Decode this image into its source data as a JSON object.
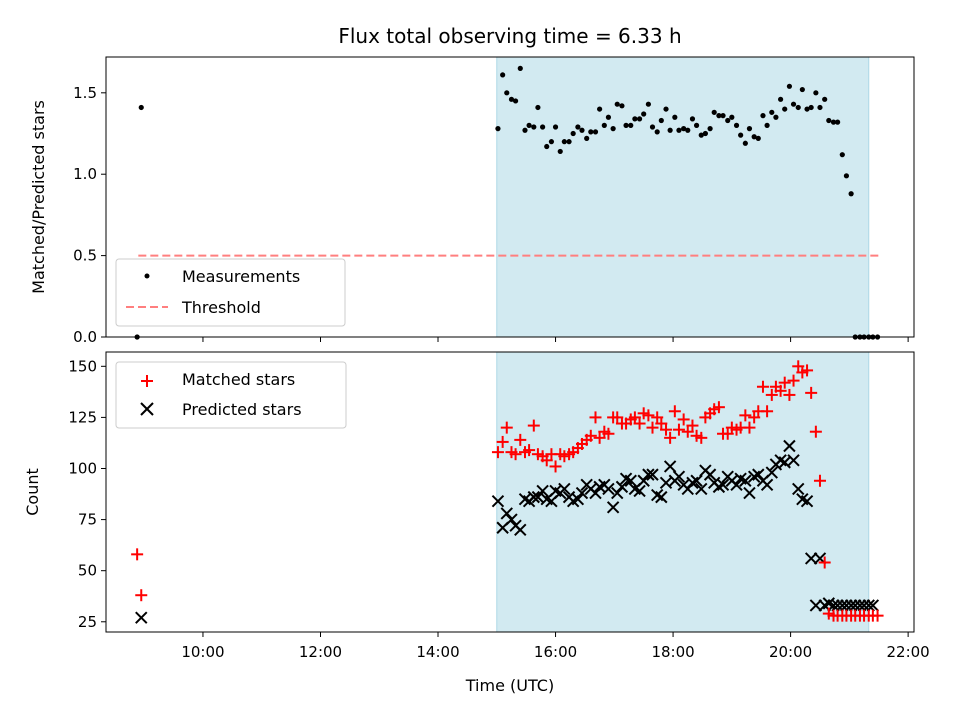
{
  "title": "Flux total observing time = 6.33 h",
  "colors": {
    "shade": "#add8e6",
    "measurement": "#000000",
    "threshold": "#ff7f7f",
    "matched": "#ff0000",
    "predicted": "#000000"
  },
  "chart_data": [
    {
      "type": "scatter",
      "panel": "top",
      "ylabel": "Matched/Predicted stars",
      "xlim": [
        8.35,
        22.1
      ],
      "ylim": [
        0,
        1.72
      ],
      "yticks": [
        0.0,
        0.5,
        1.0,
        1.5
      ],
      "ytick_labels": [
        "0.0",
        "0.5",
        "1.0",
        "1.5"
      ],
      "shaded_span": [
        15.0,
        21.33
      ],
      "legend": {
        "position": "lower-left",
        "entries": [
          "Measurements",
          "Threshold"
        ]
      },
      "threshold": {
        "name": "Threshold",
        "y": 0.5,
        "x_range": [
          8.9,
          21.5
        ]
      },
      "series": [
        {
          "name": "Measurements",
          "x": [
            8.88,
            8.95,
            15.02,
            15.1,
            15.17,
            15.25,
            15.32,
            15.4,
            15.48,
            15.55,
            15.63,
            15.7,
            15.78,
            15.85,
            15.93,
            16.0,
            16.08,
            16.15,
            16.23,
            16.3,
            16.38,
            16.45,
            16.53,
            16.6,
            16.68,
            16.75,
            16.83,
            16.9,
            16.98,
            17.05,
            17.13,
            17.2,
            17.28,
            17.35,
            17.43,
            17.5,
            17.58,
            17.65,
            17.73,
            17.8,
            17.88,
            17.95,
            18.03,
            18.1,
            18.18,
            18.25,
            18.33,
            18.4,
            18.48,
            18.55,
            18.63,
            18.7,
            18.78,
            18.85,
            18.93,
            19.0,
            19.08,
            19.15,
            19.23,
            19.3,
            19.38,
            19.45,
            19.53,
            19.6,
            19.68,
            19.75,
            19.83,
            19.9,
            19.98,
            20.05,
            20.13,
            20.2,
            20.28,
            20.35,
            20.43,
            20.5,
            20.58,
            20.65,
            20.73,
            20.8,
            20.88,
            20.95,
            21.03,
            21.1,
            21.18,
            21.25,
            21.33,
            21.4,
            21.48
          ],
          "y": [
            0.0,
            1.41,
            1.28,
            1.61,
            1.5,
            1.46,
            1.45,
            1.65,
            1.27,
            1.3,
            1.29,
            1.41,
            1.29,
            1.17,
            1.2,
            1.29,
            1.14,
            1.2,
            1.2,
            1.25,
            1.29,
            1.27,
            1.22,
            1.26,
            1.26,
            1.4,
            1.3,
            1.35,
            1.28,
            1.43,
            1.42,
            1.3,
            1.3,
            1.34,
            1.34,
            1.37,
            1.43,
            1.29,
            1.26,
            1.33,
            1.4,
            1.27,
            1.35,
            1.27,
            1.28,
            1.27,
            1.34,
            1.3,
            1.24,
            1.25,
            1.28,
            1.38,
            1.36,
            1.36,
            1.33,
            1.35,
            1.3,
            1.24,
            1.19,
            1.28,
            1.23,
            1.22,
            1.36,
            1.3,
            1.38,
            1.35,
            1.46,
            1.4,
            1.54,
            1.43,
            1.41,
            1.52,
            1.4,
            1.41,
            1.5,
            1.41,
            1.46,
            1.33,
            1.32,
            1.32,
            1.12,
            0.99,
            0.88,
            0.0,
            0.0,
            0.0,
            0.0,
            0.0,
            0.0
          ]
        }
      ]
    },
    {
      "type": "scatter",
      "panel": "bottom",
      "ylabel": "Count",
      "xlabel": "Time (UTC)",
      "xlim": [
        8.35,
        22.1
      ],
      "ylim": [
        20,
        157
      ],
      "yticks": [
        25,
        50,
        75,
        100,
        125,
        150
      ],
      "ytick_labels": [
        "25",
        "50",
        "75",
        "100",
        "125",
        "150"
      ],
      "xticks": [
        10,
        12,
        14,
        16,
        18,
        20,
        22
      ],
      "xtick_labels": [
        "10:00",
        "12:00",
        "14:00",
        "16:00",
        "18:00",
        "20:00",
        "22:00"
      ],
      "shaded_span": [
        15.0,
        21.33
      ],
      "legend": {
        "position": "upper-left",
        "entries": [
          "Matched stars",
          "Predicted stars"
        ]
      },
      "series": [
        {
          "name": "Matched stars",
          "marker": "plus",
          "x": [
            8.88,
            8.95,
            15.02,
            15.1,
            15.17,
            15.25,
            15.32,
            15.4,
            15.48,
            15.55,
            15.63,
            15.7,
            15.78,
            15.85,
            15.93,
            16.0,
            16.08,
            16.15,
            16.23,
            16.3,
            16.38,
            16.45,
            16.53,
            16.6,
            16.68,
            16.75,
            16.83,
            16.9,
            16.98,
            17.05,
            17.13,
            17.2,
            17.28,
            17.35,
            17.43,
            17.5,
            17.58,
            17.65,
            17.73,
            17.8,
            17.88,
            17.95,
            18.03,
            18.1,
            18.18,
            18.25,
            18.33,
            18.4,
            18.48,
            18.55,
            18.63,
            18.7,
            18.78,
            18.85,
            18.93,
            19.0,
            19.08,
            19.15,
            19.23,
            19.3,
            19.38,
            19.45,
            19.53,
            19.6,
            19.68,
            19.75,
            19.83,
            19.9,
            19.98,
            20.05,
            20.13,
            20.2,
            20.28,
            20.35,
            20.43,
            20.5,
            20.58,
            20.65,
            20.73,
            20.8,
            20.88,
            20.95,
            21.03,
            21.1,
            21.18,
            21.25,
            21.33,
            21.4,
            21.48
          ],
          "y": [
            58,
            38,
            108,
            113,
            120,
            108,
            107,
            114,
            108,
            109,
            121,
            107,
            106,
            104,
            107,
            101,
            107,
            106,
            107,
            108,
            110,
            112,
            114,
            116,
            125,
            115,
            118,
            117,
            125,
            125,
            122,
            122,
            124,
            125,
            122,
            127,
            126,
            120,
            125,
            122,
            119,
            115,
            128,
            119,
            124,
            118,
            121,
            116,
            115,
            125,
            127,
            129,
            130,
            117,
            117,
            120,
            119,
            120,
            126,
            120,
            125,
            128,
            140,
            128,
            136,
            140,
            138,
            142,
            136,
            143,
            150,
            147,
            148,
            137,
            118,
            94,
            54,
            29,
            28,
            28,
            28,
            28,
            28,
            28,
            28,
            28,
            28,
            28,
            28
          ],
          "y_note": ""
        },
        {
          "name": "Predicted stars",
          "marker": "x",
          "x": [
            8.95,
            15.02,
            15.1,
            15.17,
            15.25,
            15.32,
            15.4,
            15.48,
            15.55,
            15.63,
            15.7,
            15.78,
            15.85,
            15.93,
            16.0,
            16.08,
            16.15,
            16.23,
            16.3,
            16.38,
            16.45,
            16.53,
            16.6,
            16.68,
            16.75,
            16.83,
            16.9,
            16.98,
            17.05,
            17.13,
            17.2,
            17.28,
            17.35,
            17.43,
            17.5,
            17.58,
            17.65,
            17.73,
            17.8,
            17.88,
            17.95,
            18.03,
            18.1,
            18.18,
            18.25,
            18.33,
            18.4,
            18.48,
            18.55,
            18.63,
            18.7,
            18.78,
            18.85,
            18.93,
            19.0,
            19.08,
            19.15,
            19.23,
            19.3,
            19.38,
            19.45,
            19.53,
            19.6,
            19.68,
            19.75,
            19.83,
            19.9,
            19.98,
            20.05,
            20.13,
            20.2,
            20.28,
            20.35,
            20.43,
            20.5,
            20.58,
            20.65,
            20.73,
            20.8,
            20.88,
            20.95,
            21.03,
            21.1,
            21.18,
            21.25,
            21.33,
            21.4
          ],
          "y": [
            27,
            84,
            71,
            78,
            75,
            72,
            70,
            85,
            84,
            86,
            86,
            89,
            85,
            84,
            89,
            88,
            90,
            86,
            84,
            85,
            88,
            92,
            90,
            88,
            91,
            92,
            90,
            81,
            88,
            91,
            95,
            94,
            90,
            89,
            94,
            97,
            97,
            87,
            86,
            93,
            101,
            94,
            96,
            92,
            90,
            93,
            94,
            90,
            99,
            97,
            93,
            91,
            92,
            96,
            94,
            92,
            95,
            94,
            88,
            96,
            97,
            94,
            92,
            98,
            102,
            104,
            103,
            111,
            104,
            90,
            85,
            84,
            56,
            33,
            56,
            33,
            34,
            33,
            33,
            33,
            33,
            33,
            33,
            33,
            33,
            33,
            33
          ]
        }
      ]
    }
  ]
}
